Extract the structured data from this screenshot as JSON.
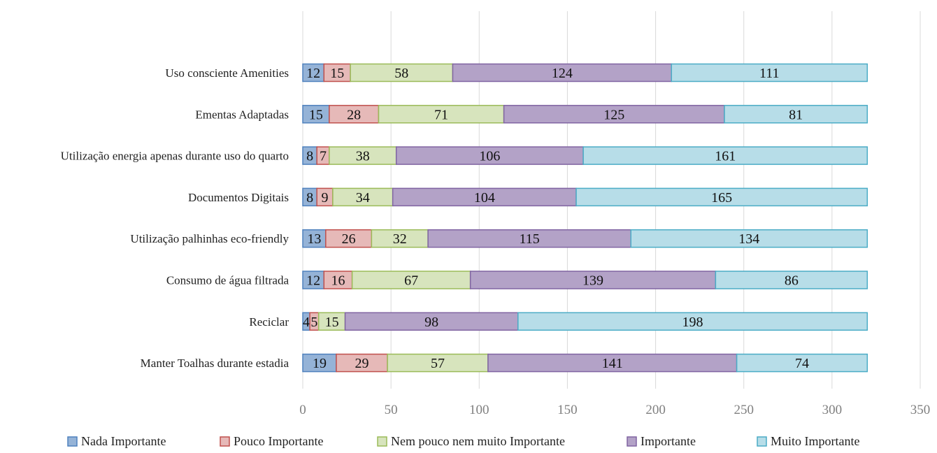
{
  "chart_data": {
    "type": "bar",
    "orientation": "horizontal",
    "stacked": true,
    "categories": [
      "Uso consciente Amenities",
      "Ementas Adaptadas",
      "Utilização energia apenas durante uso do quarto",
      "Documentos Digitais",
      "Utilização palhinhas eco-friendly",
      "Consumo de água filtrada",
      "Reciclar",
      "Manter Toalhas durante estadia"
    ],
    "series": [
      {
        "name": "Nada Importante",
        "color": "#95b3d7",
        "border": "#4f81bd",
        "values": [
          12,
          15,
          8,
          8,
          13,
          12,
          4,
          19
        ]
      },
      {
        "name": "Pouco Importante",
        "color": "#e6b9b8",
        "border": "#c0504d",
        "values": [
          15,
          28,
          7,
          9,
          26,
          16,
          5,
          29
        ]
      },
      {
        "name": "Nem pouco nem muito Importante",
        "color": "#d7e4bd",
        "border": "#9bbb59",
        "values": [
          58,
          71,
          38,
          34,
          32,
          67,
          15,
          57
        ]
      },
      {
        "name": "Importante",
        "color": "#b3a2c7",
        "border": "#8064a2",
        "values": [
          124,
          125,
          106,
          104,
          115,
          139,
          98,
          141
        ]
      },
      {
        "name": "Muito Importante",
        "color": "#b7dde8",
        "border": "#4bacc6",
        "values": [
          111,
          81,
          161,
          165,
          134,
          86,
          198,
          74
        ]
      }
    ],
    "xlim": [
      0,
      350
    ],
    "xticks": [
      0,
      50,
      100,
      150,
      200,
      250,
      300,
      350
    ],
    "grid": true,
    "legend_position": "bottom",
    "title": "",
    "xlabel": "",
    "ylabel": ""
  }
}
